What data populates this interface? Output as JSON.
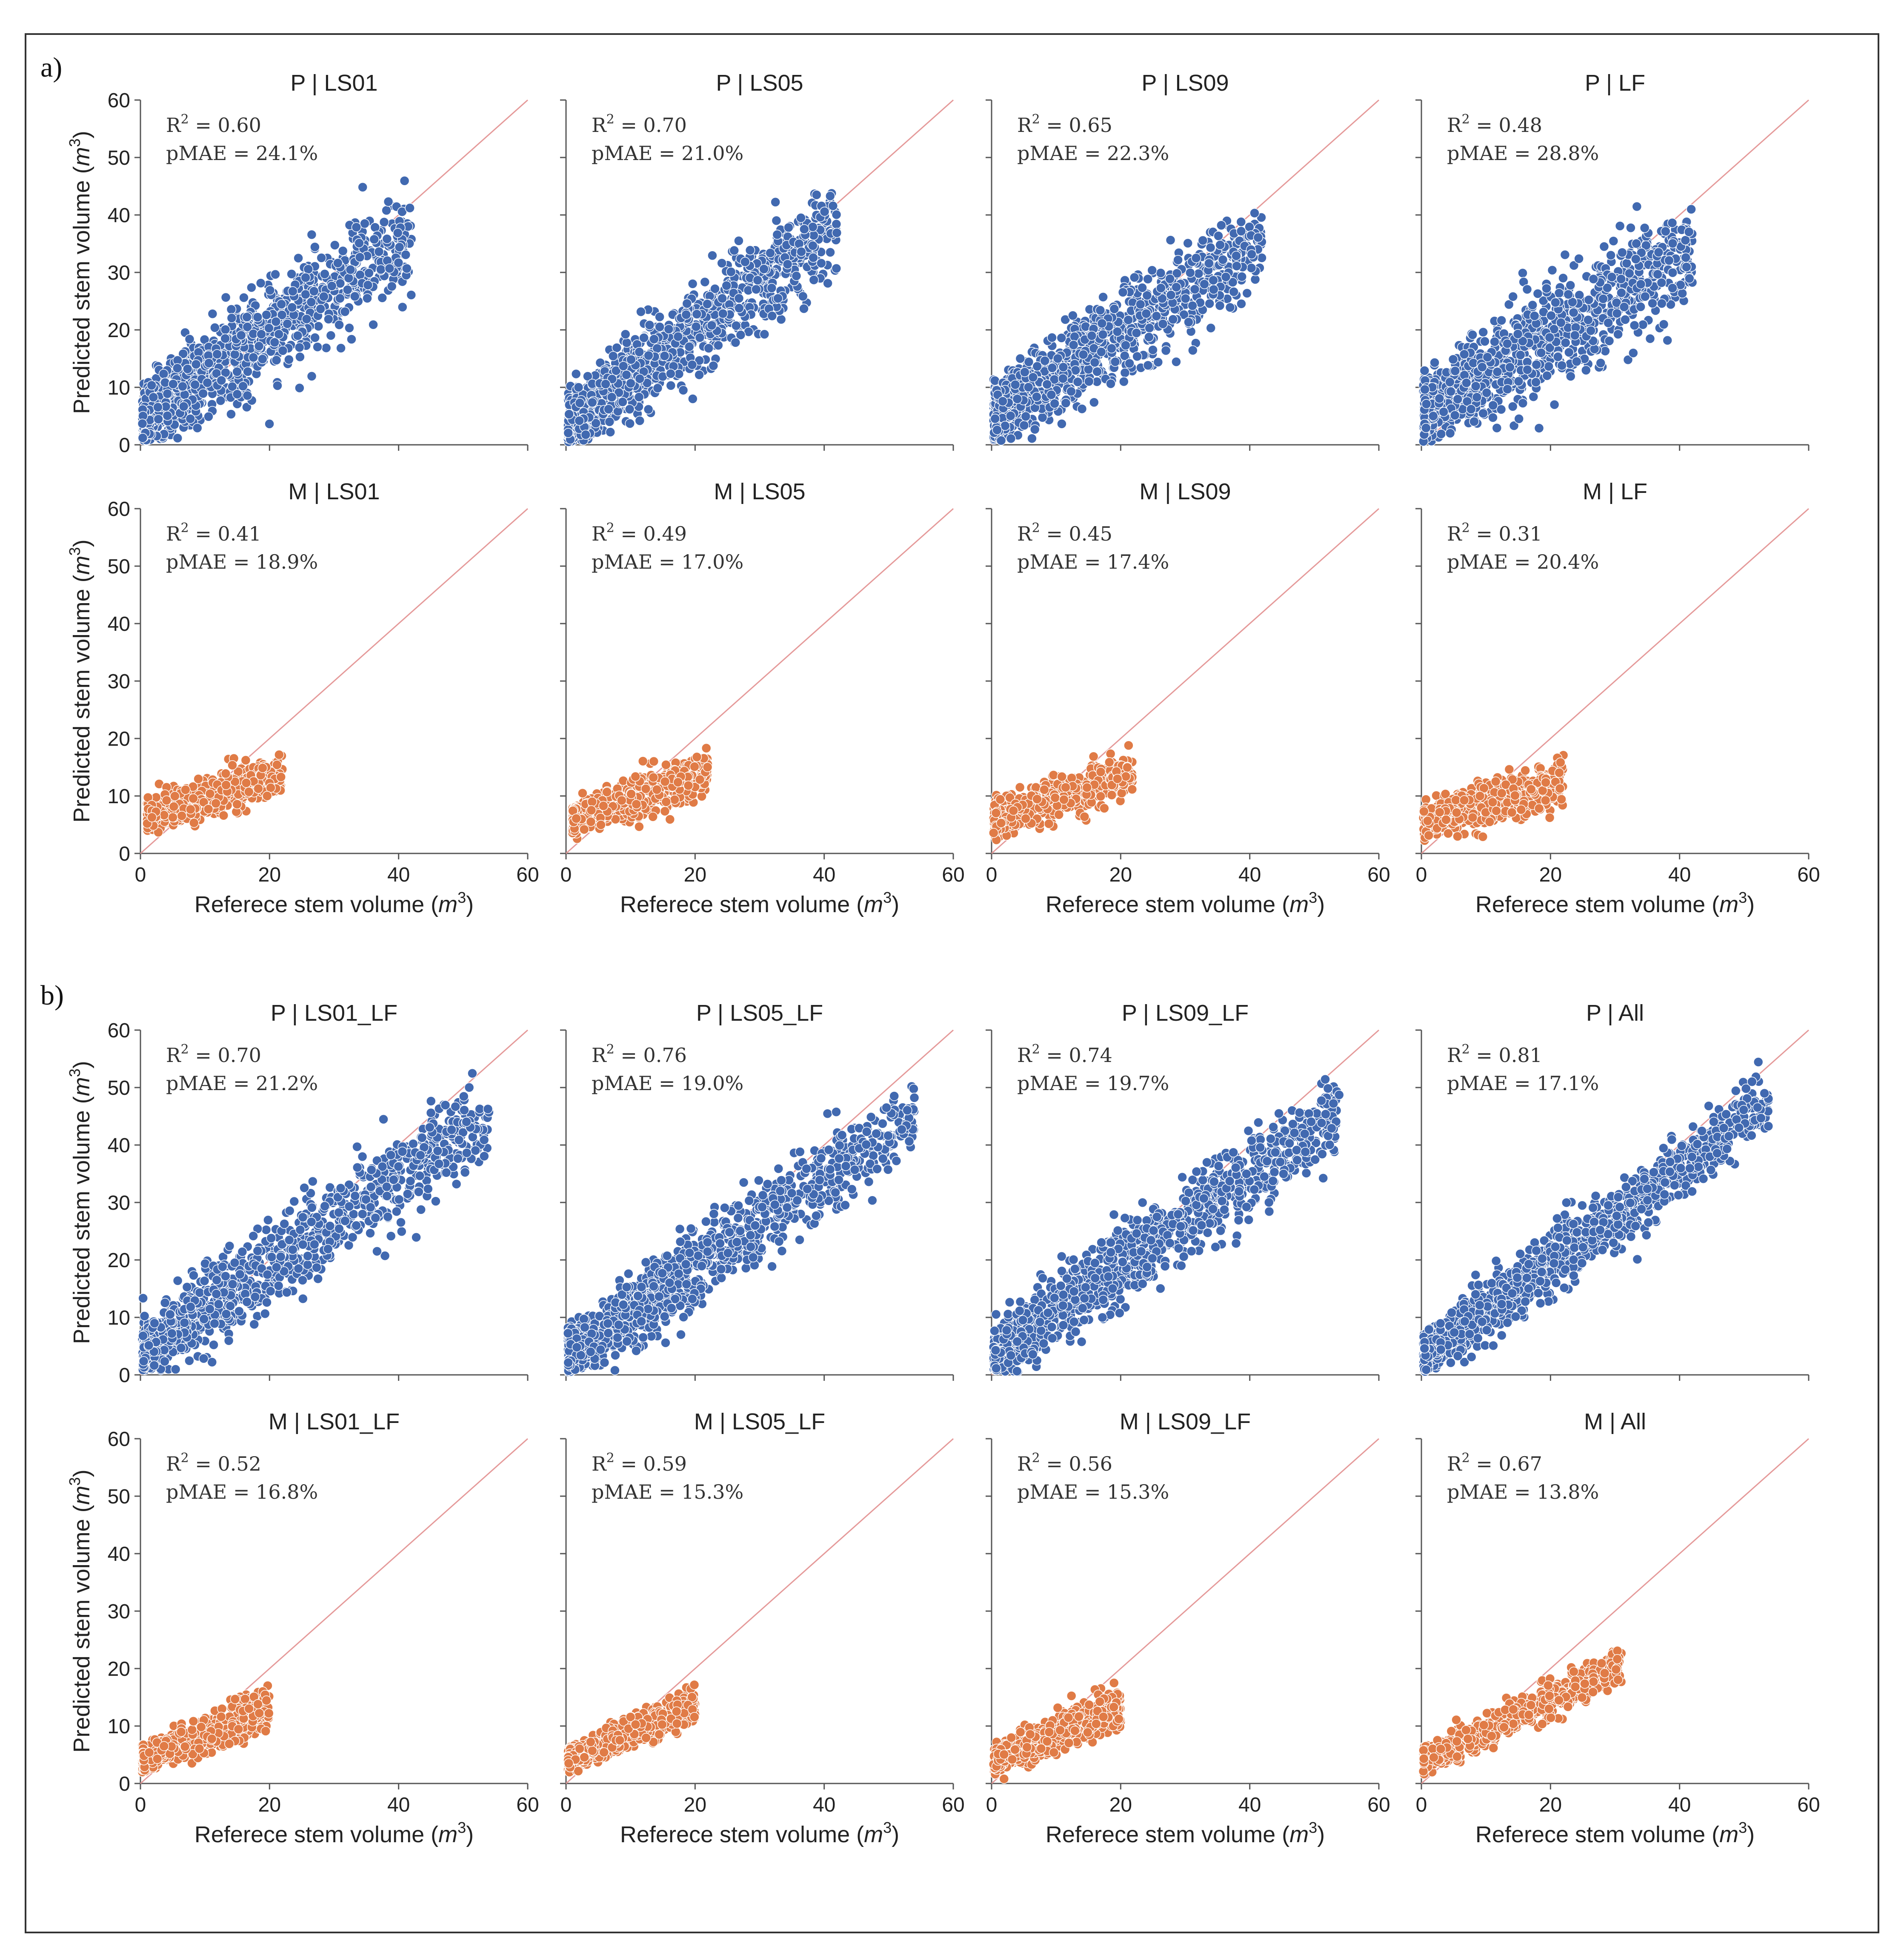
{
  "figure": {
    "section_labels": [
      "a)",
      "b)"
    ],
    "colors": {
      "P": "#4169b0",
      "M": "#e07b46",
      "reference_line": "#e59a9a",
      "frame": "#333333"
    },
    "point_edge_color": "#ffffff",
    "x_label_prefix": "Referece stem volume (",
    "y_label_prefix": "Predicted stem volume (",
    "unit_base": "m",
    "unit_exp": "3",
    "unit_close": ")",
    "r2_prefix": "R",
    "r2_exp": "2",
    "r2_eq": " = ",
    "pmae_prefix": "pMAE = "
  },
  "chart_data": [
    {
      "type": "scatter",
      "title": "P | LS01",
      "model": "P",
      "r2": "0.60",
      "pmae": "24.1%",
      "xlim": [
        0,
        60
      ],
      "ylim": [
        0,
        60
      ],
      "ticks": [
        0,
        10,
        20,
        30,
        40,
        50,
        60
      ],
      "x_range": [
        0,
        42
      ],
      "slope": 0.75,
      "intercept": 4.5,
      "spread": 4.2,
      "n": 1100,
      "seed": 11
    },
    {
      "type": "scatter",
      "title": "P | LS05",
      "model": "P",
      "r2": "0.70",
      "pmae": "21.0%",
      "xlim": [
        0,
        60
      ],
      "ylim": [
        0,
        60
      ],
      "ticks": [
        0,
        10,
        20,
        30,
        40,
        50,
        60
      ],
      "x_range": [
        0,
        42
      ],
      "slope": 0.82,
      "intercept": 3.5,
      "spread": 3.8,
      "n": 1100,
      "seed": 12
    },
    {
      "type": "scatter",
      "title": "P | LS09",
      "model": "P",
      "r2": "0.65",
      "pmae": "22.3%",
      "xlim": [
        0,
        60
      ],
      "ylim": [
        0,
        60
      ],
      "ticks": [
        0,
        10,
        20,
        30,
        40,
        50,
        60
      ],
      "x_range": [
        0,
        42
      ],
      "slope": 0.72,
      "intercept": 5.0,
      "spread": 3.9,
      "n": 1100,
      "seed": 13
    },
    {
      "type": "scatter",
      "title": "P | LF",
      "model": "P",
      "r2": "0.48",
      "pmae": "28.8%",
      "xlim": [
        0,
        60
      ],
      "ylim": [
        0,
        60
      ],
      "ticks": [
        0,
        10,
        20,
        30,
        40,
        50,
        60
      ],
      "x_range": [
        0,
        42
      ],
      "slope": 0.68,
      "intercept": 5.5,
      "spread": 4.5,
      "n": 1100,
      "seed": 14
    },
    {
      "type": "scatter",
      "title": "M | LS01",
      "model": "M",
      "r2": "0.41",
      "pmae": "18.9%",
      "xlim": [
        0,
        60
      ],
      "ylim": [
        0,
        60
      ],
      "ticks": [
        0,
        10,
        20,
        30,
        40,
        50,
        60
      ],
      "x_range": [
        1,
        22
      ],
      "slope": 0.35,
      "intercept": 6.0,
      "spread": 1.8,
      "n": 700,
      "seed": 21
    },
    {
      "type": "scatter",
      "title": "M | LS05",
      "model": "M",
      "r2": "0.49",
      "pmae": "17.0%",
      "xlim": [
        0,
        60
      ],
      "ylim": [
        0,
        60
      ],
      "ticks": [
        0,
        10,
        20,
        30,
        40,
        50,
        60
      ],
      "x_range": [
        1,
        22
      ],
      "slope": 0.4,
      "intercept": 5.5,
      "spread": 1.8,
      "n": 700,
      "seed": 22
    },
    {
      "type": "scatter",
      "title": "M | LS09",
      "model": "M",
      "r2": "0.45",
      "pmae": "17.4%",
      "xlim": [
        0,
        60
      ],
      "ylim": [
        0,
        60
      ],
      "ticks": [
        0,
        10,
        20,
        30,
        40,
        50,
        60
      ],
      "x_range": [
        0,
        22
      ],
      "slope": 0.38,
      "intercept": 5.8,
      "spread": 2.0,
      "n": 700,
      "seed": 23
    },
    {
      "type": "scatter",
      "title": "M | LF",
      "model": "M",
      "r2": "0.31",
      "pmae": "20.4%",
      "xlim": [
        0,
        60
      ],
      "ylim": [
        0,
        60
      ],
      "ticks": [
        0,
        10,
        20,
        30,
        40,
        50,
        60
      ],
      "x_range": [
        0,
        22
      ],
      "slope": 0.33,
      "intercept": 5.5,
      "spread": 2.1,
      "n": 700,
      "seed": 24
    },
    {
      "type": "scatter",
      "title": "P | LS01_LF",
      "model": "P",
      "r2": "0.70",
      "pmae": "21.2%",
      "xlim": [
        0,
        60
      ],
      "ylim": [
        0,
        60
      ],
      "ticks": [
        0,
        10,
        20,
        30,
        40,
        50,
        60
      ],
      "x_range": [
        0,
        54
      ],
      "slope": 0.76,
      "intercept": 4.0,
      "spread": 3.8,
      "n": 1200,
      "seed": 31
    },
    {
      "type": "scatter",
      "title": "P | LS05_LF",
      "model": "P",
      "r2": "0.76",
      "pmae": "19.0%",
      "xlim": [
        0,
        60
      ],
      "ylim": [
        0,
        60
      ],
      "ticks": [
        0,
        10,
        20,
        30,
        40,
        50,
        60
      ],
      "x_range": [
        0,
        54
      ],
      "slope": 0.78,
      "intercept": 3.0,
      "spread": 3.4,
      "n": 1200,
      "seed": 32
    },
    {
      "type": "scatter",
      "title": "P | LS09_LF",
      "model": "P",
      "r2": "0.74",
      "pmae": "19.7%",
      "xlim": [
        0,
        60
      ],
      "ylim": [
        0,
        60
      ],
      "ticks": [
        0,
        10,
        20,
        30,
        40,
        50,
        60
      ],
      "x_range": [
        0,
        54
      ],
      "slope": 0.78,
      "intercept": 3.5,
      "spread": 3.5,
      "n": 1200,
      "seed": 33
    },
    {
      "type": "scatter",
      "title": "P | All",
      "model": "P",
      "r2": "0.81",
      "pmae": "17.1%",
      "xlim": [
        0,
        60
      ],
      "ylim": [
        0,
        60
      ],
      "ticks": [
        0,
        10,
        20,
        30,
        40,
        50,
        60
      ],
      "x_range": [
        0,
        54
      ],
      "slope": 0.82,
      "intercept": 3.0,
      "spread": 2.8,
      "n": 1200,
      "seed": 34
    },
    {
      "type": "scatter",
      "title": "M | LS01_LF",
      "model": "M",
      "r2": "0.52",
      "pmae": "16.8%",
      "xlim": [
        0,
        60
      ],
      "ylim": [
        0,
        60
      ],
      "ticks": [
        0,
        10,
        20,
        30,
        40,
        50,
        60
      ],
      "x_range": [
        0,
        20
      ],
      "slope": 0.45,
      "intercept": 4.0,
      "spread": 1.8,
      "n": 800,
      "seed": 41
    },
    {
      "type": "scatter",
      "title": "M | LS05_LF",
      "model": "M",
      "r2": "0.59",
      "pmae": "15.3%",
      "xlim": [
        0,
        60
      ],
      "ylim": [
        0,
        60
      ],
      "ticks": [
        0,
        10,
        20,
        30,
        40,
        50,
        60
      ],
      "x_range": [
        0,
        20
      ],
      "slope": 0.5,
      "intercept": 3.8,
      "spread": 1.6,
      "n": 800,
      "seed": 42
    },
    {
      "type": "scatter",
      "title": "M | LS09_LF",
      "model": "M",
      "r2": "0.56",
      "pmae": "15.3%",
      "xlim": [
        0,
        60
      ],
      "ylim": [
        0,
        60
      ],
      "ticks": [
        0,
        10,
        20,
        30,
        40,
        50,
        60
      ],
      "x_range": [
        0,
        20
      ],
      "slope": 0.48,
      "intercept": 3.8,
      "spread": 1.7,
      "n": 800,
      "seed": 43
    },
    {
      "type": "scatter",
      "title": "M | All",
      "model": "M",
      "r2": "0.67",
      "pmae": "13.8%",
      "xlim": [
        0,
        60
      ],
      "ylim": [
        0,
        60
      ],
      "ticks": [
        0,
        10,
        20,
        30,
        40,
        50,
        60
      ],
      "x_range": [
        0,
        31
      ],
      "slope": 0.55,
      "intercept": 3.5,
      "spread": 1.6,
      "n": 800,
      "seed": 44
    }
  ]
}
